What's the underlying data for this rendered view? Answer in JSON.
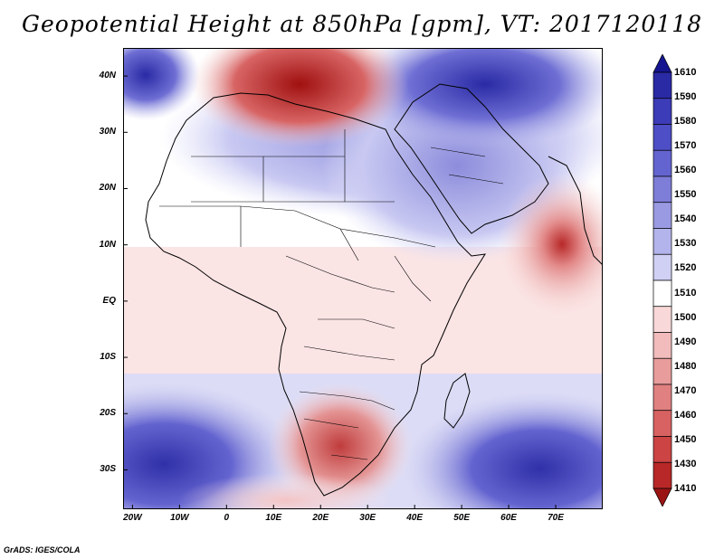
{
  "title": "Geopotential Height at 850hPa [gpm], VT: 2017120118",
  "credit": "GrADS: IGES/COLA",
  "lat_labels": [
    "40N",
    "30N",
    "20N",
    "10N",
    "EQ",
    "10S",
    "20S",
    "30S"
  ],
  "lon_labels": [
    "20W",
    "10W",
    "0",
    "10E",
    "20E",
    "30E",
    "40E",
    "50E",
    "60E",
    "70E"
  ],
  "lat_values": [
    40,
    30,
    20,
    10,
    0,
    -10,
    -20,
    -30
  ],
  "lon_values": [
    -20,
    -10,
    0,
    10,
    20,
    30,
    40,
    50,
    60,
    70
  ],
  "extent": {
    "lon_min": -22,
    "lon_max": 80,
    "lat_min": -37,
    "lat_max": 45
  },
  "colorbar": {
    "levels": [
      "1610",
      "1590",
      "1580",
      "1570",
      "1560",
      "1550",
      "1540",
      "1530",
      "1520",
      "1510",
      "1500",
      "1490",
      "1480",
      "1470",
      "1460",
      "1450",
      "1430",
      "1410"
    ],
    "colors": [
      "#15158f",
      "#2a2aa5",
      "#3c3cb8",
      "#4e4ec6",
      "#6464d0",
      "#7e7ed8",
      "#9a9ae2",
      "#b4b4ec",
      "#d0d0f4",
      "#ffffff",
      "#f8d8d8",
      "#f2bcbc",
      "#e89c9c",
      "#e08080",
      "#d86262",
      "#cc4444",
      "#b82828",
      "#9a1414"
    ]
  },
  "colors": {
    "ocean_base": "#ffffff",
    "land_border": "#000000"
  }
}
